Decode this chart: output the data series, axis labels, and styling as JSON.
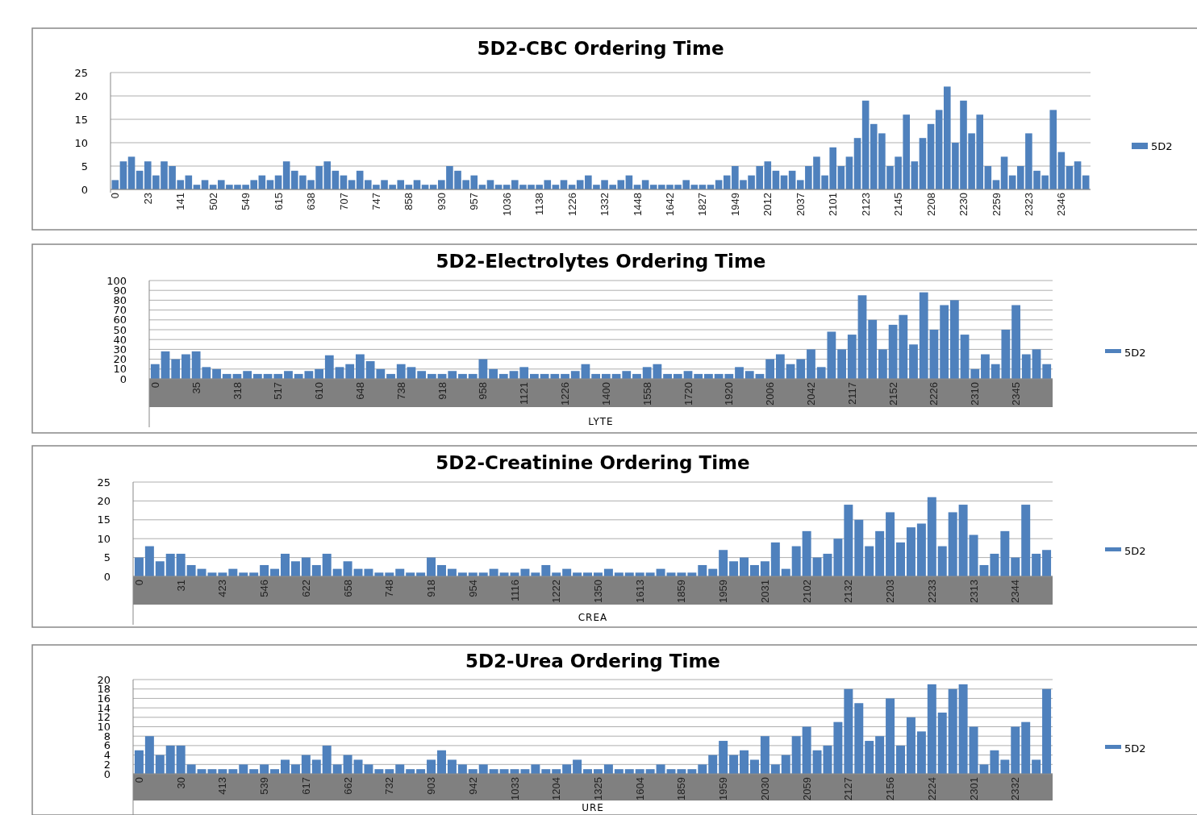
{
  "chart_data": [
    {
      "type": "bar",
      "title": "5D2-CBC Ordering Time",
      "categories": [
        "0",
        null,
        null,
        null,
        "23",
        null,
        null,
        null,
        "141",
        null,
        null,
        null,
        "502",
        null,
        null,
        null,
        "549",
        null,
        null,
        null,
        "615",
        null,
        null,
        null,
        "638",
        null,
        null,
        null,
        "707",
        null,
        null,
        null,
        "747",
        null,
        null,
        null,
        "858",
        null,
        null,
        null,
        "930",
        null,
        null,
        null,
        "957",
        null,
        null,
        null,
        "1036",
        null,
        null,
        null,
        "1138",
        null,
        null,
        null,
        "1226",
        null,
        null,
        null,
        "1332",
        null,
        null,
        null,
        "1448",
        null,
        null,
        null,
        "1642",
        null,
        null,
        null,
        "1827",
        null,
        null,
        null,
        "1949",
        null,
        null,
        null,
        "2012",
        null,
        null,
        null,
        "2037",
        null,
        null,
        null,
        "2101",
        null,
        null,
        null,
        "2123",
        null,
        null,
        null,
        "2145",
        null,
        null,
        null,
        "2208",
        null,
        null,
        null,
        "2230",
        null,
        null,
        null,
        "2259",
        null,
        null,
        null,
        "2323",
        null,
        null,
        null,
        "2346",
        null,
        null,
        null
      ],
      "series": [
        {
          "name": "5D2",
          "color": "#4f81bd",
          "values": [
            2,
            6,
            7,
            4,
            6,
            3,
            6,
            5,
            2,
            3,
            1,
            2,
            1,
            2,
            1,
            1,
            1,
            2,
            3,
            2,
            3,
            6,
            4,
            3,
            2,
            5,
            6,
            4,
            3,
            2,
            4,
            2,
            1,
            2,
            1,
            2,
            1,
            2,
            1,
            1,
            2,
            5,
            4,
            2,
            3,
            1,
            2,
            1,
            1,
            2,
            1,
            1,
            1,
            2,
            1,
            2,
            1,
            2,
            3,
            1,
            2,
            1,
            2,
            3,
            1,
            2,
            1,
            1,
            1,
            1,
            2,
            1,
            1,
            1,
            2,
            3,
            5,
            2,
            3,
            5,
            6,
            4,
            3,
            4,
            2,
            5,
            7,
            3,
            9,
            5,
            7,
            11,
            19,
            14,
            12,
            5,
            7,
            16,
            6,
            11,
            14,
            17,
            22,
            10,
            19,
            12,
            16,
            5,
            2,
            7,
            3,
            5,
            12,
            4,
            3,
            17,
            8,
            5,
            6,
            3
          ]
        }
      ],
      "ylim": [
        0,
        25
      ],
      "yticks": [
        0,
        5,
        10,
        15,
        20,
        25
      ],
      "grid": "y",
      "legend": "right"
    },
    {
      "type": "bar",
      "title": "5D2-Electrolytes Ordering Time",
      "xlabel": "LYTE",
      "categories": [
        "0",
        null,
        null,
        null,
        "35",
        null,
        null,
        null,
        "318",
        null,
        null,
        null,
        "517",
        null,
        null,
        null,
        "610",
        null,
        null,
        null,
        "648",
        null,
        null,
        null,
        "738",
        null,
        null,
        null,
        "918",
        null,
        null,
        null,
        "958",
        null,
        null,
        null,
        "1121",
        null,
        null,
        null,
        "1226",
        null,
        null,
        null,
        "1400",
        null,
        null,
        null,
        "1558",
        null,
        null,
        null,
        "1720",
        null,
        null,
        null,
        "1920",
        null,
        null,
        null,
        "2006",
        null,
        null,
        null,
        "2042",
        null,
        null,
        null,
        "2117",
        null,
        null,
        null,
        "2152",
        null,
        null,
        null,
        "2226",
        null,
        null,
        null,
        "2310",
        null,
        null,
        null,
        "2345",
        null,
        null,
        null
      ],
      "series": [
        {
          "name": "5D2",
          "color": "#4f81bd",
          "values": [
            15,
            28,
            20,
            25,
            28,
            12,
            10,
            5,
            5,
            8,
            5,
            5,
            5,
            8,
            5,
            8,
            10,
            24,
            12,
            15,
            25,
            18,
            10,
            5,
            15,
            12,
            8,
            5,
            5,
            8,
            5,
            5,
            20,
            10,
            5,
            8,
            12,
            5,
            5,
            5,
            5,
            8,
            15,
            5,
            5,
            5,
            8,
            5,
            12,
            15,
            5,
            5,
            8,
            5,
            5,
            5,
            5,
            12,
            8,
            5,
            20,
            25,
            15,
            20,
            30,
            12,
            48,
            30,
            45,
            85,
            60,
            30,
            55,
            65,
            35,
            88,
            50,
            75,
            80,
            45,
            10,
            25,
            15,
            50,
            75,
            25,
            30,
            15
          ]
        }
      ],
      "ylim": [
        0,
        100
      ],
      "yticks": [
        0,
        10,
        20,
        30,
        40,
        50,
        60,
        70,
        80,
        90,
        100
      ],
      "grid": "y",
      "legend": "right"
    },
    {
      "type": "bar",
      "title": "5D2-Creatinine Ordering Time",
      "xlabel": "CREA",
      "categories": [
        "0",
        null,
        null,
        null,
        "31",
        null,
        null,
        null,
        "423",
        null,
        null,
        null,
        "546",
        null,
        null,
        null,
        "622",
        null,
        null,
        null,
        "658",
        null,
        null,
        null,
        "748",
        null,
        null,
        null,
        "918",
        null,
        null,
        null,
        "954",
        null,
        null,
        null,
        "1116",
        null,
        null,
        null,
        "1222",
        null,
        null,
        null,
        "1350",
        null,
        null,
        null,
        "1613",
        null,
        null,
        null,
        "1859",
        null,
        null,
        null,
        "1959",
        null,
        null,
        null,
        "2031",
        null,
        null,
        null,
        "2102",
        null,
        null,
        null,
        "2132",
        null,
        null,
        null,
        "2203",
        null,
        null,
        null,
        "2233",
        null,
        null,
        null,
        "2313",
        null,
        null,
        null,
        "2344",
        null,
        null,
        null
      ],
      "series": [
        {
          "name": "5D2",
          "color": "#4f81bd",
          "values": [
            5,
            8,
            4,
            6,
            6,
            3,
            2,
            1,
            1,
            2,
            1,
            1,
            3,
            2,
            6,
            4,
            5,
            3,
            6,
            2,
            4,
            2,
            2,
            1,
            1,
            2,
            1,
            1,
            5,
            3,
            2,
            1,
            1,
            1,
            2,
            1,
            1,
            2,
            1,
            3,
            1,
            2,
            1,
            1,
            1,
            2,
            1,
            1,
            1,
            1,
            2,
            1,
            1,
            1,
            3,
            2,
            7,
            4,
            5,
            3,
            4,
            9,
            2,
            8,
            12,
            5,
            6,
            10,
            19,
            15,
            8,
            12,
            17,
            9,
            13,
            14,
            21,
            8,
            17,
            19,
            11,
            3,
            6,
            12,
            5,
            19,
            6,
            7
          ]
        }
      ],
      "ylim": [
        0,
        25
      ],
      "yticks": [
        0,
        5,
        10,
        15,
        20,
        25
      ],
      "grid": "y",
      "legend": "right"
    },
    {
      "type": "bar",
      "title": "5D2-Urea Ordering Time",
      "xlabel": "URE",
      "categories": [
        "0",
        null,
        null,
        null,
        "30",
        null,
        null,
        null,
        "413",
        null,
        null,
        null,
        "539",
        null,
        null,
        null,
        "617",
        null,
        null,
        null,
        "662",
        null,
        null,
        null,
        "732",
        null,
        null,
        null,
        "903",
        null,
        null,
        null,
        "942",
        null,
        null,
        null,
        "1033",
        null,
        null,
        null,
        "1204",
        null,
        null,
        null,
        "1325",
        null,
        null,
        null,
        "1604",
        null,
        null,
        null,
        "1859",
        null,
        null,
        null,
        "1959",
        null,
        null,
        null,
        "2030",
        null,
        null,
        null,
        "2059",
        null,
        null,
        null,
        "2127",
        null,
        null,
        null,
        "2156",
        null,
        null,
        null,
        "2224",
        null,
        null,
        null,
        "2301",
        null,
        null,
        null,
        "2332",
        null,
        null,
        null
      ],
      "series": [
        {
          "name": "5D2",
          "color": "#4f81bd",
          "values": [
            5,
            8,
            4,
            6,
            6,
            2,
            1,
            1,
            1,
            1,
            2,
            1,
            2,
            1,
            3,
            2,
            4,
            3,
            6,
            2,
            4,
            3,
            2,
            1,
            1,
            2,
            1,
            1,
            3,
            5,
            3,
            2,
            1,
            2,
            1,
            1,
            1,
            1,
            2,
            1,
            1,
            2,
            3,
            1,
            1,
            2,
            1,
            1,
            1,
            1,
            2,
            1,
            1,
            1,
            2,
            4,
            7,
            4,
            5,
            3,
            8,
            2,
            4,
            8,
            10,
            5,
            6,
            11,
            18,
            15,
            7,
            8,
            16,
            6,
            12,
            9,
            19,
            13,
            18,
            19,
            10,
            2,
            5,
            3,
            10,
            11,
            3,
            18
          ]
        }
      ],
      "ylim": [
        0,
        20
      ],
      "yticks": [
        0,
        2,
        4,
        6,
        8,
        10,
        12,
        14,
        16,
        18,
        20
      ],
      "grid": "y",
      "legend": "right"
    }
  ]
}
